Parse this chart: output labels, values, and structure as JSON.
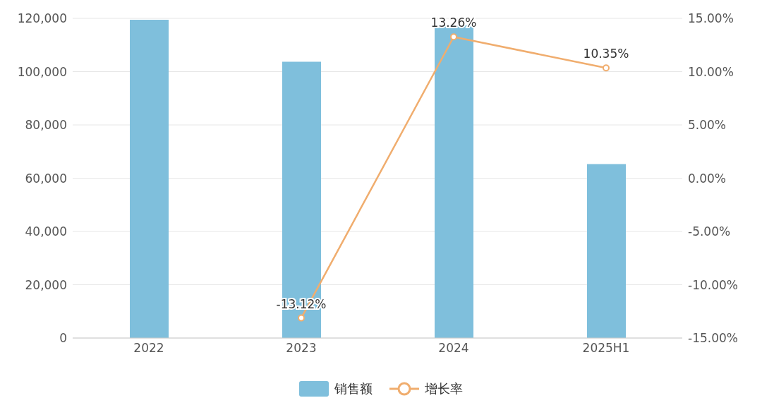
{
  "chart_data": {
    "type": "bar",
    "categories": [
      "2022",
      "2023",
      "2024",
      "2025H1"
    ],
    "series": [
      {
        "name": "销售额",
        "color": "#7fbfdc",
        "values": [
          119500,
          103700,
          117400,
          65300
        ]
      },
      {
        "name": "增长率",
        "type": "line",
        "axis": "y2",
        "color": "#f0ad6e",
        "values": [
          null,
          -13.12,
          13.26,
          10.35
        ],
        "value_labels": [
          null,
          "-13.12%",
          "13.26%",
          "10.35%"
        ]
      }
    ],
    "ylim": [
      0,
      120000
    ],
    "yticks": [
      {
        "value": 0,
        "label": "0"
      },
      {
        "value": 20000,
        "label": "20,000"
      },
      {
        "value": 40000,
        "label": "40,000"
      },
      {
        "value": 60000,
        "label": "60,000"
      },
      {
        "value": 80000,
        "label": "80,000"
      },
      {
        "value": 100000,
        "label": "100,000"
      },
      {
        "value": 120000,
        "label": "120,000"
      }
    ],
    "y2lim": [
      -15,
      15
    ],
    "y2ticks": [
      {
        "value": -15,
        "label": "-15.00%"
      },
      {
        "value": -10,
        "label": "-10.00%"
      },
      {
        "value": -5,
        "label": "-5.00%"
      },
      {
        "value": 0,
        "label": "0.00%"
      },
      {
        "value": 5,
        "label": "5.00%"
      },
      {
        "value": 10,
        "label": "10.00%"
      },
      {
        "value": 15,
        "label": "15.00%"
      }
    ],
    "grid": "y",
    "legend": "bottom",
    "marker": "circle",
    "line_style": "solid"
  }
}
